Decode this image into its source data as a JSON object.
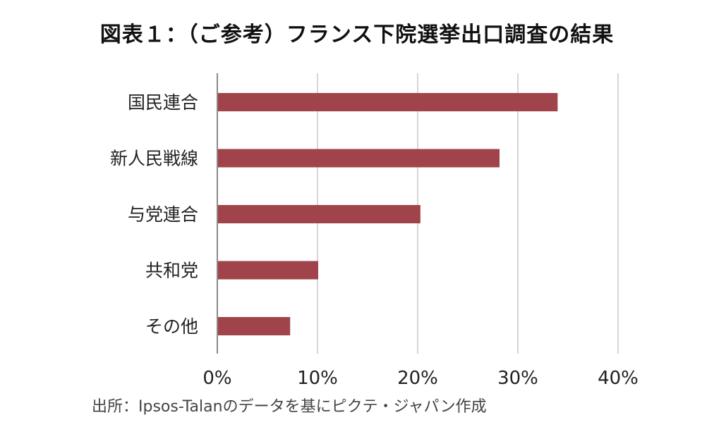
{
  "chart_data": {
    "type": "bar",
    "orientation": "horizontal",
    "title": "図表１：（ご参考）フランス下院選挙出口調査の結果",
    "categories": [
      "国民連合",
      "新人民戦線",
      "与党連合",
      "共和党",
      "その他"
    ],
    "values": [
      33.9,
      28.1,
      20.2,
      10.0,
      7.2
    ],
    "xlim": [
      0,
      40
    ],
    "x_ticks": [
      0,
      10,
      20,
      30,
      40
    ],
    "x_tick_labels": [
      "0%",
      "10%",
      "20%",
      "30%",
      "40%"
    ],
    "grid": true,
    "bar_color": "#a0434a",
    "source": "出所：Ipsos-Talanのデータを基にピクテ・ジャパン作成"
  }
}
